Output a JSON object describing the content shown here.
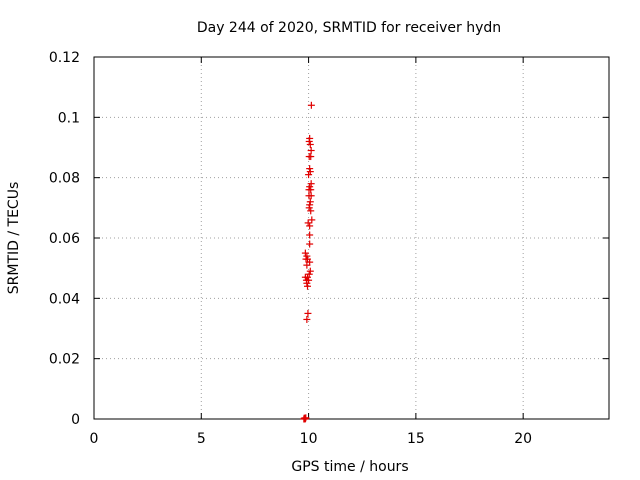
{
  "chart_data": {
    "type": "scatter",
    "title": "Day 244 of 2020, SRMTID for receiver hydn",
    "xlabel": "GPS time / hours",
    "ylabel": "SRMTID / TECUs",
    "xlim": [
      0,
      24
    ],
    "ylim": [
      0,
      0.12
    ],
    "xticks": [
      0,
      5,
      10,
      15,
      20
    ],
    "xtick_labels": [
      "0",
      "5",
      "10",
      "15",
      "20"
    ],
    "yticks": [
      0,
      0.02,
      0.04,
      0.06,
      0.08,
      0.1,
      0.12
    ],
    "ytick_labels": [
      "0",
      "0.02",
      "0.04",
      "0.06",
      "0.08",
      "0.1",
      "0.12"
    ],
    "grid": true,
    "marker": "+",
    "color": "#e00000",
    "series": [
      {
        "name": "SRMTID",
        "points": [
          [
            10.13,
            0.104
          ],
          [
            10.05,
            0.093
          ],
          [
            10.08,
            0.091
          ],
          [
            10.03,
            0.092
          ],
          [
            10.12,
            0.089
          ],
          [
            10.1,
            0.087
          ],
          [
            10.03,
            0.087
          ],
          [
            10.05,
            0.083
          ],
          [
            10.08,
            0.082
          ],
          [
            10.0,
            0.081
          ],
          [
            10.12,
            0.078
          ],
          [
            10.05,
            0.077
          ],
          [
            10.1,
            0.076
          ],
          [
            10.02,
            0.076
          ],
          [
            10.12,
            0.074
          ],
          [
            10.02,
            0.074
          ],
          [
            10.08,
            0.072
          ],
          [
            10.05,
            0.071
          ],
          [
            10.03,
            0.07
          ],
          [
            10.1,
            0.069
          ],
          [
            10.15,
            0.066
          ],
          [
            9.98,
            0.065
          ],
          [
            10.05,
            0.064
          ],
          [
            10.05,
            0.061
          ],
          [
            10.05,
            0.058
          ],
          [
            9.85,
            0.055
          ],
          [
            9.92,
            0.054
          ],
          [
            9.88,
            0.053
          ],
          [
            9.95,
            0.053
          ],
          [
            10.05,
            0.052
          ],
          [
            9.92,
            0.051
          ],
          [
            10.08,
            0.049
          ],
          [
            10.03,
            0.048
          ],
          [
            9.95,
            0.047
          ],
          [
            9.85,
            0.047
          ],
          [
            10.0,
            0.046
          ],
          [
            9.9,
            0.046
          ],
          [
            9.92,
            0.045
          ],
          [
            9.95,
            0.044
          ],
          [
            9.97,
            0.035
          ],
          [
            9.92,
            0.033
          ],
          [
            9.8,
            0.0003
          ],
          [
            9.82,
            0.0002
          ],
          [
            9.85,
            0.0001
          ],
          [
            9.78,
            0.0
          ],
          [
            9.83,
            0.0
          ],
          [
            9.87,
            0.0004
          ]
        ]
      }
    ]
  }
}
